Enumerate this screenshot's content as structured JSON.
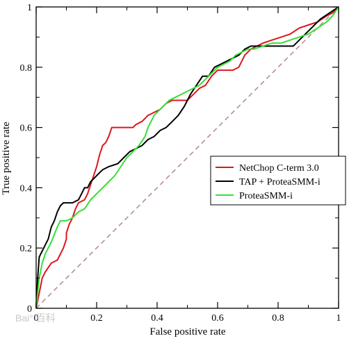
{
  "chart_data": {
    "type": "line",
    "title": "",
    "xlabel": "False positive rate",
    "ylabel": "True positive rate",
    "xlim": [
      0,
      1
    ],
    "ylim": [
      0,
      1
    ],
    "x_ticks": [
      {
        "value": 0,
        "label": "0"
      },
      {
        "value": 0.2,
        "label": "0.2"
      },
      {
        "value": 0.4,
        "label": "0.4"
      },
      {
        "value": 0.6,
        "label": "0.6"
      },
      {
        "value": 0.8,
        "label": "0.8"
      },
      {
        "value": 1,
        "label": "1"
      }
    ],
    "y_ticks": [
      {
        "value": 0,
        "label": "0"
      },
      {
        "value": 0.2,
        "label": "0.2"
      },
      {
        "value": 0.4,
        "label": "0.4"
      },
      {
        "value": 0.6,
        "label": "0.6"
      },
      {
        "value": 0.8,
        "label": "0.8"
      },
      {
        "value": 1,
        "label": "1"
      }
    ],
    "grid": false,
    "legend_position": "center-right",
    "reference_line": {
      "x": [
        0,
        1
      ],
      "y": [
        0,
        1
      ],
      "color": "#b3908a",
      "style": "dashed"
    },
    "series": [
      {
        "name": "NetChop C-term 3.0",
        "color": "#e0141c",
        "x": [
          0,
          0.01,
          0.02,
          0.03,
          0.05,
          0.07,
          0.09,
          0.1,
          0.1,
          0.11,
          0.12,
          0.13,
          0.14,
          0.16,
          0.17,
          0.18,
          0.19,
          0.2,
          0.21,
          0.22,
          0.23,
          0.24,
          0.25,
          0.27,
          0.28,
          0.3,
          0.32,
          0.33,
          0.35,
          0.37,
          0.39,
          0.41,
          0.43,
          0.45,
          0.47,
          0.5,
          0.52,
          0.54,
          0.56,
          0.58,
          0.6,
          0.62,
          0.65,
          0.67,
          0.69,
          0.71,
          0.73,
          0.75,
          0.78,
          0.81,
          0.84,
          0.87,
          0.9,
          0.93,
          0.96,
          0.98,
          1
        ],
        "y": [
          0,
          0.05,
          0.1,
          0.12,
          0.15,
          0.16,
          0.2,
          0.23,
          0.25,
          0.28,
          0.3,
          0.33,
          0.35,
          0.36,
          0.38,
          0.41,
          0.44,
          0.47,
          0.51,
          0.54,
          0.55,
          0.57,
          0.6,
          0.6,
          0.6,
          0.6,
          0.6,
          0.61,
          0.62,
          0.64,
          0.65,
          0.66,
          0.68,
          0.69,
          0.69,
          0.69,
          0.71,
          0.73,
          0.74,
          0.77,
          0.79,
          0.79,
          0.79,
          0.8,
          0.84,
          0.86,
          0.87,
          0.88,
          0.89,
          0.9,
          0.91,
          0.93,
          0.94,
          0.95,
          0.97,
          0.98,
          1
        ]
      },
      {
        "name": "TAP + ProteaSMM-i",
        "color": "#000000",
        "x": [
          0,
          0.005,
          0.01,
          0.02,
          0.03,
          0.04,
          0.05,
          0.06,
          0.07,
          0.08,
          0.09,
          0.1,
          0.12,
          0.14,
          0.15,
          0.16,
          0.17,
          0.18,
          0.19,
          0.2,
          0.21,
          0.22,
          0.24,
          0.27,
          0.29,
          0.31,
          0.33,
          0.35,
          0.37,
          0.39,
          0.41,
          0.43,
          0.45,
          0.47,
          0.49,
          0.51,
          0.53,
          0.55,
          0.57,
          0.59,
          0.61,
          0.63,
          0.65,
          0.67,
          0.69,
          0.71,
          0.73,
          0.75,
          0.77,
          0.79,
          0.82,
          0.85,
          0.88,
          0.91,
          0.94,
          0.97,
          1
        ],
        "y": [
          0,
          0.1,
          0.17,
          0.19,
          0.21,
          0.23,
          0.27,
          0.29,
          0.32,
          0.34,
          0.35,
          0.35,
          0.35,
          0.36,
          0.38,
          0.4,
          0.4,
          0.42,
          0.43,
          0.44,
          0.45,
          0.46,
          0.47,
          0.48,
          0.5,
          0.52,
          0.53,
          0.54,
          0.56,
          0.57,
          0.59,
          0.6,
          0.62,
          0.64,
          0.67,
          0.71,
          0.74,
          0.77,
          0.77,
          0.8,
          0.81,
          0.82,
          0.83,
          0.84,
          0.86,
          0.87,
          0.87,
          0.87,
          0.87,
          0.87,
          0.87,
          0.87,
          0.9,
          0.93,
          0.96,
          0.98,
          1
        ]
      },
      {
        "name": "ProteaSMM-i",
        "color": "#33e033",
        "x": [
          0,
          0.01,
          0.02,
          0.03,
          0.05,
          0.07,
          0.08,
          0.1,
          0.12,
          0.14,
          0.16,
          0.18,
          0.2,
          0.22,
          0.24,
          0.26,
          0.28,
          0.3,
          0.32,
          0.34,
          0.36,
          0.37,
          0.38,
          0.39,
          0.4,
          0.42,
          0.44,
          0.46,
          0.48,
          0.5,
          0.52,
          0.54,
          0.56,
          0.58,
          0.6,
          0.62,
          0.64,
          0.66,
          0.68,
          0.7,
          0.72,
          0.75,
          0.78,
          0.81,
          0.84,
          0.87,
          0.9,
          0.93,
          0.96,
          0.98,
          1
        ],
        "y": [
          0,
          0.1,
          0.15,
          0.18,
          0.22,
          0.27,
          0.29,
          0.29,
          0.3,
          0.32,
          0.33,
          0.36,
          0.38,
          0.4,
          0.42,
          0.44,
          0.47,
          0.5,
          0.52,
          0.54,
          0.57,
          0.6,
          0.62,
          0.64,
          0.65,
          0.67,
          0.69,
          0.7,
          0.71,
          0.72,
          0.73,
          0.74,
          0.76,
          0.78,
          0.8,
          0.81,
          0.82,
          0.84,
          0.85,
          0.86,
          0.86,
          0.87,
          0.88,
          0.88,
          0.89,
          0.9,
          0.91,
          0.93,
          0.95,
          0.97,
          1
        ]
      }
    ]
  },
  "watermark": {
    "text": "Bai° 百科"
  }
}
